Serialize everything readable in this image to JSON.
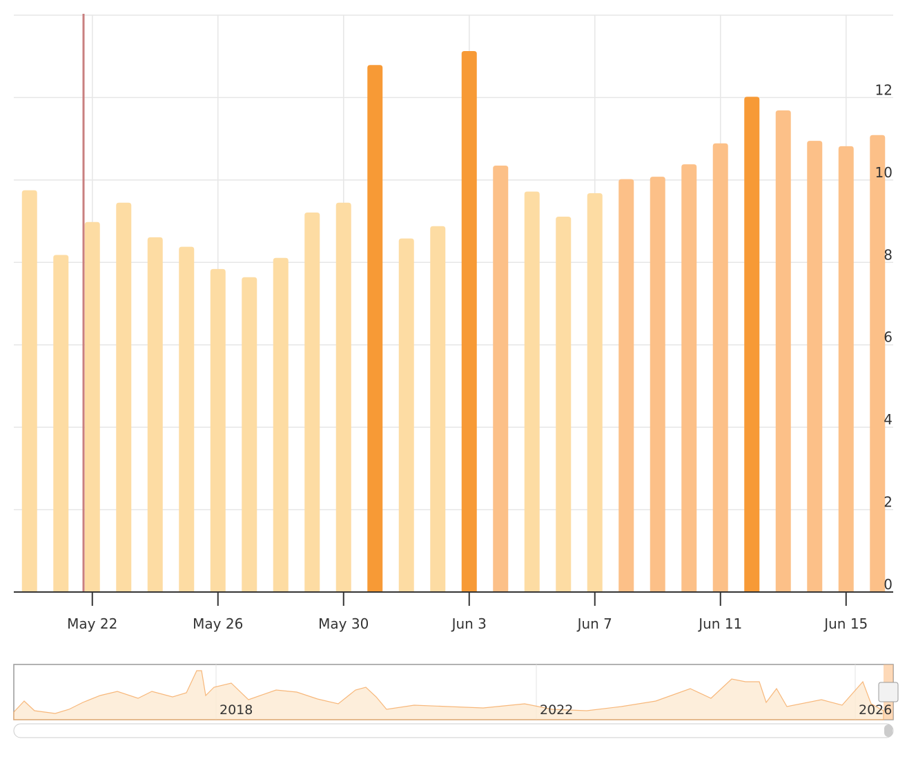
{
  "chart_data": {
    "type": "bar",
    "categories": [
      null,
      null,
      "May 22",
      null,
      null,
      null,
      "May 26",
      null,
      null,
      null,
      "May 30",
      null,
      null,
      null,
      "Jun 3",
      null,
      null,
      null,
      "Jun 7",
      null,
      null,
      null,
      "Jun 11",
      null,
      null,
      null,
      "Jun 15",
      null
    ],
    "values": [
      9.75,
      8.18,
      8.98,
      9.45,
      8.61,
      8.38,
      7.84,
      7.64,
      8.11,
      9.21,
      9.45,
      12.79,
      8.58,
      8.88,
      13.13,
      10.35,
      9.72,
      9.11,
      9.68,
      10.02,
      10.08,
      10.38,
      10.89,
      12.02,
      11.69,
      10.95,
      10.82,
      11.09
    ],
    "colors": [
      "#fddca3",
      "#fddca3",
      "#fddca3",
      "#fddca3",
      "#fddca3",
      "#fddca3",
      "#fddca3",
      "#fddca3",
      "#fddca3",
      "#fddca3",
      "#fddca3",
      "#f79a36",
      "#fddca3",
      "#fddca3",
      "#f79a36",
      "#fcc088",
      "#fddca3",
      "#fddca3",
      "#fddca3",
      "#fcc088",
      "#fcc088",
      "#fcc088",
      "#fcc088",
      "#f79a36",
      "#fcc088",
      "#fcc088",
      "#fcc088",
      "#fcc088"
    ],
    "ylim": [
      0,
      14
    ],
    "yticks": [
      0,
      2,
      4,
      6,
      8,
      10,
      12
    ],
    "grid": true
  },
  "navigator": {
    "labels": [
      "2018",
      "2022",
      "2026"
    ]
  }
}
